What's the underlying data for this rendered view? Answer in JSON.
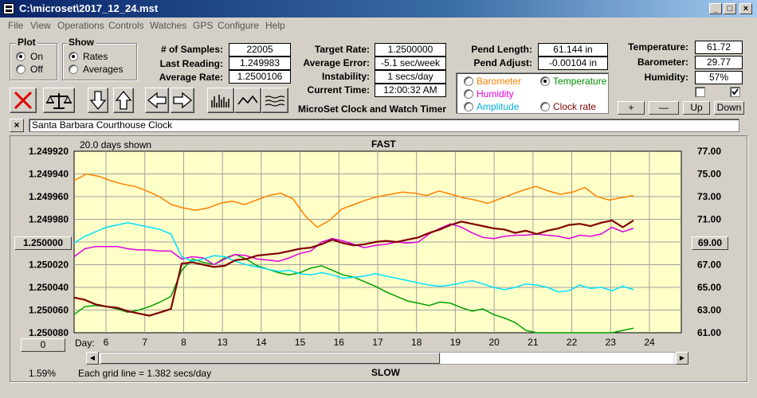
{
  "window": {
    "title": "C:\\microset\\2017_12_24.mst"
  },
  "menu": [
    "File",
    "View",
    "Operations",
    "Controls",
    "Watches",
    "GPS",
    "Configure",
    "Help"
  ],
  "plot": {
    "label": "Plot",
    "options": [
      "On",
      "Off"
    ],
    "selected": "On"
  },
  "show": {
    "label": "Show",
    "options": [
      "Rates",
      "Averages"
    ],
    "selected": "Rates"
  },
  "stats": [
    {
      "label": "# of Samples:",
      "value": "22005"
    },
    {
      "label": "Last Reading:",
      "value": "1.249983"
    },
    {
      "label": "Average Rate:",
      "value": "1.2500106"
    }
  ],
  "rates": [
    {
      "label": "Target Rate:",
      "value": "1.2500000"
    },
    {
      "label": "Average Error:",
      "value": "-5.1 sec/week"
    },
    {
      "label": "Instability:",
      "value": "1 secs/day"
    },
    {
      "label": "Current Time:",
      "value": "12:00:32 AM"
    }
  ],
  "app_heading": "MicroSet Clock and Watch Timer",
  "pendulum": [
    {
      "label": "Pend Length:",
      "value": "61.144 in"
    },
    {
      "label": "Pend Adjust:",
      "value": "-0.00104 in"
    }
  ],
  "sensor_options": [
    {
      "label": "Barometer",
      "color": "#ff8000",
      "checked": false
    },
    {
      "label": "Temperature",
      "color": "#009000",
      "checked": true
    },
    {
      "label": "Humidity",
      "color": "#e000e0",
      "checked": false
    },
    {
      "label": "Amplitude",
      "color": "#00b0e0",
      "checked": false
    },
    {
      "label": "Clock rate",
      "color": "#800000",
      "checked": false
    }
  ],
  "environment": [
    {
      "label": "Temperature:",
      "value": "61.72"
    },
    {
      "label": "Barometer:",
      "value": "29.77"
    },
    {
      "label": "Humidity:",
      "value": "57%"
    }
  ],
  "checkboxes": [
    false,
    true
  ],
  "scale_buttons": [
    "+",
    "—",
    "Up",
    "Down"
  ],
  "clock_name": "Santa Barbara Courthouse Clock",
  "close_label": "×",
  "chart_data": {
    "type": "line",
    "title": "FAST",
    "bottom_label": "SLOW",
    "days_shown": "20.0 days shown",
    "grid_note": "Each grid line = 1.382 secs/day",
    "percent": "1.59%",
    "left_button": "0",
    "center_left_button": "1.250000",
    "center_right_button": "69.00",
    "day_label": "Day:",
    "left_ticks": [
      "1.249920",
      "1.249940",
      "1.249960",
      "1.249980",
      "",
      "1.250020",
      "1.250040",
      "1.250060",
      "1.250080"
    ],
    "right_ticks": [
      "77.00",
      "75.00",
      "73.00",
      "71.00",
      "",
      "67.00",
      "65.00",
      "63.00",
      "61.00"
    ],
    "days": [
      "6",
      "7",
      "8",
      "13",
      "14",
      "15",
      "16",
      "17",
      "18",
      "19",
      "20",
      "21",
      "22",
      "23",
      "24"
    ],
    "grid": true,
    "series": [
      {
        "name": "Barometer",
        "color": "#ff8000",
        "values": [
          74.4,
          75.0,
          74.8,
          74.4,
          74.1,
          73.9,
          73.5,
          73.0,
          72.3,
          72.0,
          71.8,
          72.0,
          72.4,
          72.6,
          72.3,
          72.7,
          73.1,
          73.3,
          72.8,
          71.3,
          70.3,
          70.9,
          71.9,
          72.3,
          72.7,
          73.0,
          73.2,
          73.4,
          73.3,
          73.1,
          73.5,
          73.2,
          72.9,
          72.7,
          72.4,
          72.8,
          73.2,
          73.6,
          73.9,
          73.5,
          73.2,
          73.4,
          73.8,
          73.0,
          72.7,
          72.9,
          73.1
        ]
      },
      {
        "name": "Temperature",
        "color": "#00a000",
        "values": [
          62.6,
          63.3,
          63.4,
          63.3,
          63.1,
          62.8,
          63.0,
          63.3,
          63.7,
          64.2,
          66.5,
          67.5,
          67.2,
          67.0,
          67.6,
          67.9,
          67.5,
          66.9,
          66.6,
          66.3,
          66.1,
          66.3,
          66.7,
          66.9,
          66.5,
          66.1,
          65.9,
          65.5,
          65.1,
          64.6,
          64.2,
          63.8,
          63.6,
          63.4,
          63.7,
          63.6,
          63.2,
          62.9,
          63.1,
          62.6,
          62.3,
          61.9,
          61.2,
          60.6,
          61.0,
          60.8,
          60.7,
          60.5,
          60.6,
          60.4,
          60.5,
          61.2,
          61.4
        ]
      },
      {
        "name": "Humidity",
        "color": "#e000e0",
        "values": [
          67.7,
          68.4,
          68.6,
          68.6,
          68.6,
          68.4,
          68.3,
          68.3,
          68.2,
          68.2,
          67.5,
          67.7,
          67.6,
          67.0,
          67.5,
          67.9,
          67.8,
          67.5,
          67.4,
          67.3,
          67.6,
          68.0,
          68.2,
          69.0,
          69.3,
          69.1,
          68.8,
          68.5,
          68.7,
          68.8,
          69.0,
          68.9,
          69.0,
          69.7,
          70.2,
          70.6,
          70.3,
          69.8,
          69.4,
          69.3,
          69.5,
          69.6,
          69.6,
          69.7,
          69.6,
          69.5,
          69.3,
          69.6,
          69.5,
          69.7,
          70.3,
          69.9,
          70.2
        ]
      },
      {
        "name": "Amplitude",
        "color": "#00e0ff",
        "values": [
          68.9,
          69.5,
          69.9,
          70.3,
          70.5,
          70.7,
          70.5,
          70.3,
          70.1,
          69.7,
          67.7,
          67.3,
          67.5,
          67.8,
          67.7,
          67.3,
          67.0,
          66.8,
          66.6,
          66.4,
          66.5,
          66.2,
          66.1,
          66.3,
          66.1,
          65.8,
          65.9,
          66.0,
          66.2,
          66.0,
          65.8,
          65.6,
          65.4,
          65.2,
          65.1,
          65.2,
          65.4,
          65.6,
          65.3,
          65.0,
          64.8,
          65.0,
          65.3,
          65.2,
          65.0,
          64.6,
          64.7,
          65.2,
          64.9,
          65.0,
          64.7,
          65.1,
          64.8
        ]
      },
      {
        "name": "Clock rate",
        "color": "#800000",
        "values": [
          64.1,
          63.9,
          63.5,
          63.3,
          63.2,
          62.9,
          62.7,
          62.5,
          62.8,
          63.1,
          67.1,
          67.2,
          67.0,
          66.8,
          66.9,
          67.4,
          67.5,
          67.8,
          67.9,
          68.0,
          68.2,
          68.4,
          68.5,
          68.8,
          69.2,
          68.9,
          68.7,
          68.8,
          69.0,
          69.1,
          69.0,
          69.2,
          69.4,
          69.8,
          70.1,
          70.5,
          70.8,
          70.6,
          70.4,
          70.2,
          70.1,
          69.8,
          70.0,
          69.7,
          70.0,
          70.2,
          70.5,
          70.6,
          70.4,
          70.7,
          70.9,
          70.3,
          70.9
        ]
      }
    ],
    "y_right_range": [
      61,
      77
    ]
  }
}
